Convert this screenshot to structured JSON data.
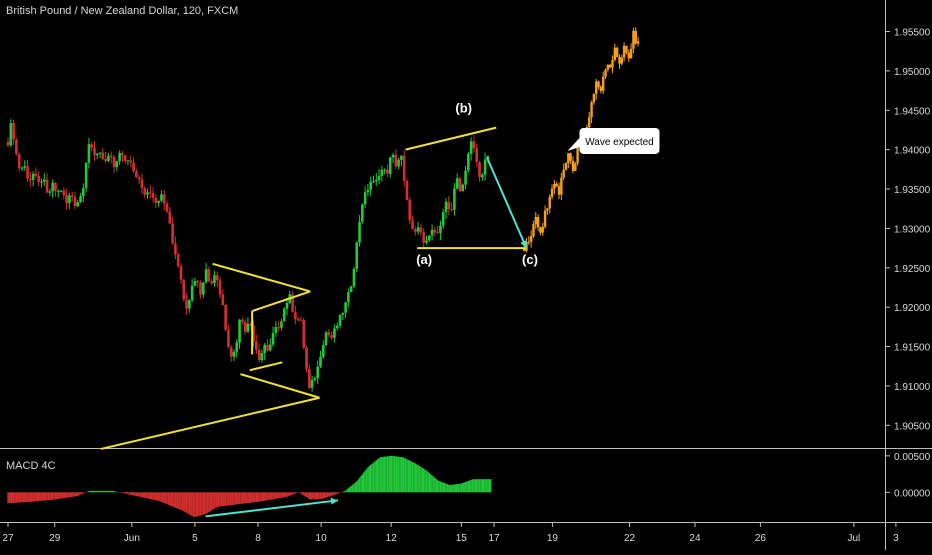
{
  "header": {
    "title": "British Pound / New Zealand Dollar, 120, FXCM"
  },
  "colors": {
    "background": "#000000",
    "up": "#22c93a",
    "down": "#d42f2f",
    "projection": "#f5a01a",
    "pattern": "#f2e235",
    "arrow": "#4fe3c9",
    "text": "#d6d6d6",
    "axis": "#d9d9d9"
  },
  "macd": {
    "label": "MACD 4C",
    "ticks": [
      "0.00500",
      "0.00000"
    ]
  },
  "chart_data": {
    "type": "candlestick",
    "symbol": "GBP/NZD",
    "price_axis": {
      "ticks": [
        "1.95500",
        "1.95000",
        "1.94500",
        "1.94000",
        "1.93500",
        "1.93000",
        "1.92500",
        "1.92000",
        "1.91500",
        "1.91000",
        "1.90500"
      ],
      "range": [
        1.9025,
        1.959
      ]
    },
    "time_axis": {
      "ticks": [
        "27",
        "29",
        "Jun",
        "5",
        "8",
        "10",
        "12",
        "15",
        "17",
        "19",
        "22",
        "24",
        "26",
        "Jul",
        "3"
      ],
      "range_days": [
        0,
        38
      ]
    },
    "price_path": [
      [
        0.0,
        1.941
      ],
      [
        0.15,
        1.9435
      ],
      [
        0.35,
        1.9395
      ],
      [
        0.5,
        1.9375
      ],
      [
        0.7,
        1.938
      ],
      [
        0.9,
        1.936
      ],
      [
        1.1,
        1.937
      ],
      [
        1.3,
        1.9355
      ],
      [
        1.5,
        1.9365
      ],
      [
        1.7,
        1.934
      ],
      [
        1.9,
        1.9355
      ],
      [
        2.1,
        1.9345
      ],
      [
        2.3,
        1.935
      ],
      [
        2.5,
        1.933
      ],
      [
        2.7,
        1.9345
      ],
      [
        2.9,
        1.933
      ],
      [
        3.2,
        1.9345
      ],
      [
        3.45,
        1.941
      ],
      [
        3.7,
        1.939
      ],
      [
        3.9,
        1.94
      ],
      [
        4.2,
        1.9385
      ],
      [
        4.4,
        1.939
      ],
      [
        4.6,
        1.9375
      ],
      [
        4.8,
        1.9395
      ],
      [
        5.0,
        1.9385
      ],
      [
        5.2,
        1.939
      ],
      [
        5.4,
        1.937
      ],
      [
        5.6,
        1.9365
      ],
      [
        5.9,
        1.9345
      ],
      [
        6.1,
        1.935
      ],
      [
        6.3,
        1.933
      ],
      [
        6.6,
        1.934
      ],
      [
        6.9,
        1.932
      ],
      [
        7.1,
        1.928
      ],
      [
        7.3,
        1.926
      ],
      [
        7.5,
        1.922
      ],
      [
        7.7,
        1.92
      ],
      [
        7.9,
        1.9225
      ],
      [
        8.1,
        1.924
      ],
      [
        8.3,
        1.9215
      ],
      [
        8.5,
        1.925
      ],
      [
        8.7,
        1.923
      ],
      [
        8.9,
        1.9245
      ],
      [
        9.2,
        1.921
      ],
      [
        9.4,
        1.9165
      ],
      [
        9.6,
        1.9135
      ],
      [
        9.8,
        1.915
      ],
      [
        10.0,
        1.9195
      ],
      [
        10.2,
        1.917
      ],
      [
        10.4,
        1.9185
      ],
      [
        10.6,
        1.915
      ],
      [
        10.8,
        1.913
      ],
      [
        11.0,
        1.9155
      ],
      [
        11.2,
        1.914
      ],
      [
        11.4,
        1.9165
      ],
      [
        11.7,
        1.918
      ],
      [
        11.9,
        1.92
      ],
      [
        12.1,
        1.9215
      ],
      [
        12.3,
        1.919
      ],
      [
        12.6,
        1.918
      ],
      [
        12.8,
        1.913
      ],
      [
        12.95,
        1.9095
      ],
      [
        13.1,
        1.9105
      ],
      [
        13.3,
        1.912
      ],
      [
        13.5,
        1.915
      ],
      [
        13.7,
        1.917
      ],
      [
        13.9,
        1.916
      ],
      [
        14.2,
        1.918
      ],
      [
        14.4,
        1.9195
      ],
      [
        14.6,
        1.921
      ],
      [
        14.8,
        1.9235
      ],
      [
        15.0,
        1.928
      ],
      [
        15.2,
        1.933
      ],
      [
        15.4,
        1.9345
      ],
      [
        15.6,
        1.936
      ],
      [
        15.8,
        1.9355
      ],
      [
        16.0,
        1.9375
      ],
      [
        16.3,
        1.937
      ],
      [
        16.5,
        1.9395
      ],
      [
        16.7,
        1.938
      ],
      [
        16.9,
        1.9395
      ],
      [
        17.05,
        1.9355
      ],
      [
        17.2,
        1.9325
      ],
      [
        17.45,
        1.929
      ],
      [
        17.7,
        1.93
      ],
      [
        17.95,
        1.9275
      ],
      [
        18.2,
        1.9305
      ],
      [
        18.4,
        1.929
      ],
      [
        18.6,
        1.93
      ],
      [
        18.85,
        1.9335
      ],
      [
        19.05,
        1.932
      ],
      [
        19.3,
        1.9365
      ],
      [
        19.5,
        1.9345
      ],
      [
        19.7,
        1.938
      ],
      [
        19.9,
        1.941
      ],
      [
        20.1,
        1.9395
      ],
      [
        20.3,
        1.936
      ],
      [
        20.5,
        1.9385
      ],
      [
        20.7,
        1.939
      ]
    ],
    "projection_path": [
      [
        22.2,
        1.9275
      ],
      [
        22.5,
        1.929
      ],
      [
        22.7,
        1.931
      ],
      [
        22.9,
        1.9295
      ],
      [
        23.1,
        1.932
      ],
      [
        23.3,
        1.934
      ],
      [
        23.5,
        1.936
      ],
      [
        23.7,
        1.9345
      ],
      [
        23.9,
        1.9375
      ],
      [
        24.1,
        1.939
      ],
      [
        24.3,
        1.937
      ],
      [
        24.5,
        1.94
      ],
      [
        24.7,
        1.941
      ],
      [
        24.9,
        1.943
      ],
      [
        25.1,
        1.946
      ],
      [
        25.3,
        1.949
      ],
      [
        25.5,
        1.9475
      ],
      [
        25.7,
        1.9505
      ],
      [
        25.9,
        1.95
      ],
      [
        26.1,
        1.9525
      ],
      [
        26.3,
        1.951
      ],
      [
        26.5,
        1.953
      ],
      [
        26.7,
        1.9515
      ],
      [
        26.9,
        1.9545
      ],
      [
        27.1,
        1.9535
      ],
      [
        27.2,
        1.955
      ]
    ],
    "pattern_lines": [
      [
        [
          8.8,
          1.9255
        ],
        [
          13.0,
          1.922
        ]
      ],
      [
        [
          10.5,
          1.9195
        ],
        [
          13.0,
          1.922
        ]
      ],
      [
        [
          10.5,
          1.9195
        ],
        [
          10.5,
          1.914
        ]
      ],
      [
        [
          10.4,
          1.912
        ],
        [
          11.8,
          1.913
        ]
      ],
      [
        [
          10.0,
          1.9115
        ],
        [
          13.4,
          1.9085
        ]
      ],
      [
        [
          4.0,
          1.902
        ],
        [
          13.4,
          1.9085
        ]
      ],
      [
        [
          17.1,
          1.94
        ],
        [
          21.0,
          1.9428
        ]
      ],
      [
        [
          17.6,
          1.9275
        ],
        [
          22.3,
          1.9275
        ]
      ]
    ],
    "arrow": {
      "from": [
        20.6,
        1.939
      ],
      "to": [
        22.3,
        1.9275
      ]
    },
    "wave_labels": [
      {
        "text": "(b)",
        "x": 19.6,
        "y": 1.9447
      },
      {
        "text": "(a)",
        "x": 17.9,
        "y": 1.9255
      },
      {
        "text": "(c)",
        "x": 22.45,
        "y": 1.9255
      }
    ],
    "callout": {
      "text": "Wave expected",
      "x": 26.3,
      "y": 1.9411
    },
    "macd_histogram": [
      [
        0,
        -0.0015
      ],
      [
        1,
        -0.0013
      ],
      [
        2,
        -0.001
      ],
      [
        3,
        -0.0005
      ],
      [
        3.5,
        0.0002
      ],
      [
        4.5,
        0.0002
      ],
      [
        5.5,
        -0.0005
      ],
      [
        6.5,
        -0.0012
      ],
      [
        7.5,
        -0.0025
      ],
      [
        8,
        -0.0034
      ],
      [
        8.5,
        -0.003
      ],
      [
        9,
        -0.002
      ],
      [
        10,
        -0.0016
      ],
      [
        11,
        -0.0012
      ],
      [
        12,
        -0.0006
      ],
      [
        12.5,
        0.0
      ],
      [
        13,
        -0.001
      ],
      [
        13.5,
        -0.0009
      ],
      [
        14,
        -0.0004
      ],
      [
        14.5,
        0.0002
      ],
      [
        15,
        0.0015
      ],
      [
        15.5,
        0.0035
      ],
      [
        16,
        0.0048
      ],
      [
        16.5,
        0.005
      ],
      [
        17,
        0.0048
      ],
      [
        17.5,
        0.004
      ],
      [
        18,
        0.003
      ],
      [
        18.5,
        0.0016
      ],
      [
        19,
        0.001
      ],
      [
        19.5,
        0.0012
      ],
      [
        20,
        0.0018
      ],
      [
        20.8,
        0.0018
      ]
    ],
    "macd_range": [
      -0.0038,
      0.0058
    ],
    "divergence_arrow": {
      "from": [
        8.5,
        -0.0033
      ],
      "to": [
        14.2,
        -0.0011
      ]
    }
  }
}
